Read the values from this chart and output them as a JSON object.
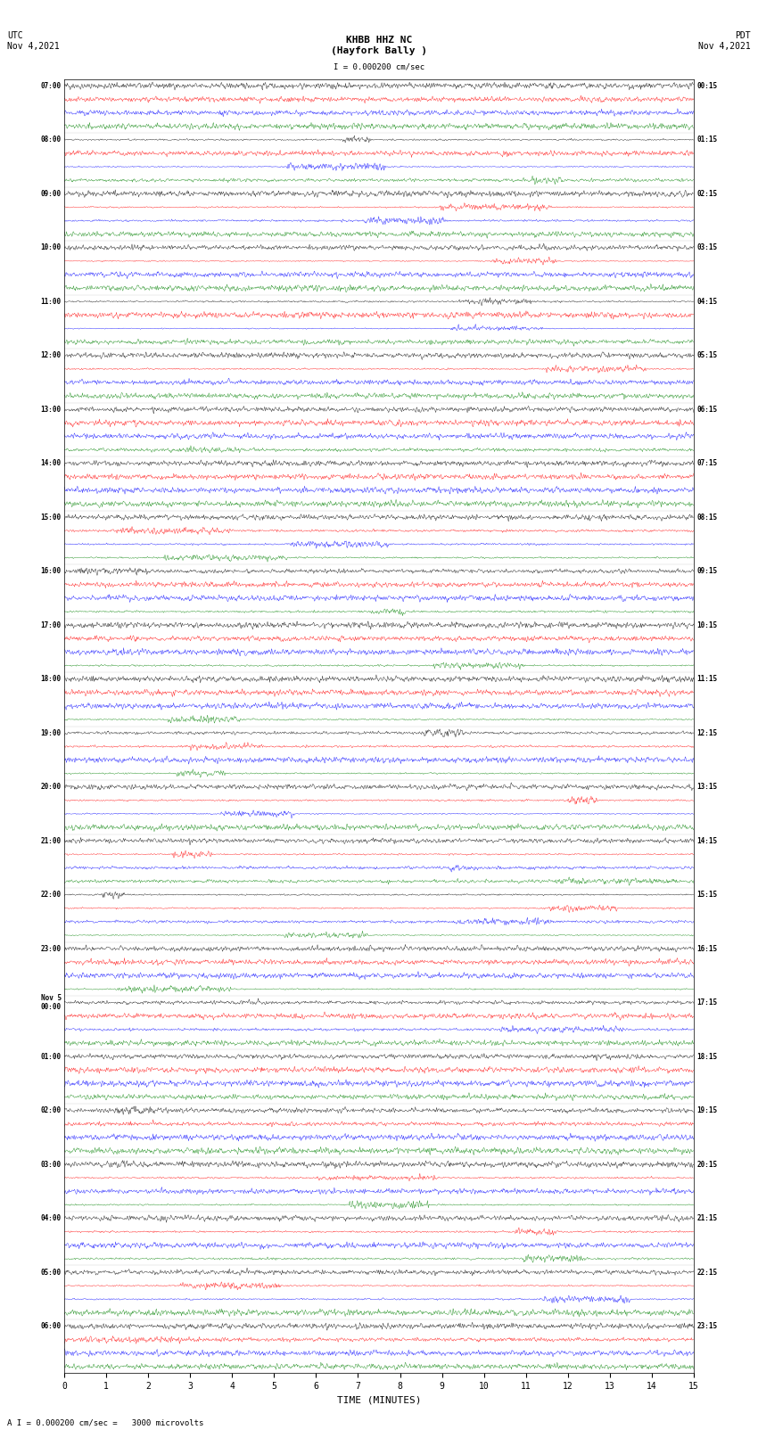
{
  "title_center": "KHBB HHZ NC\n(Hayfork Bally )",
  "title_left": "UTC\nNov 4,2021",
  "title_right": "PDT\nNov 4,2021",
  "scale_label": "I = 0.000200 cm/sec",
  "footer_label": "A I = 0.000200 cm/sec =   3000 microvolts",
  "xlabel": "TIME (MINUTES)",
  "xticks": [
    0,
    1,
    2,
    3,
    4,
    5,
    6,
    7,
    8,
    9,
    10,
    11,
    12,
    13,
    14,
    15
  ],
  "left_times": [
    "07:00",
    "",
    "",
    "",
    "08:00",
    "",
    "",
    "",
    "09:00",
    "",
    "",
    "",
    "10:00",
    "",
    "",
    "",
    "11:00",
    "",
    "",
    "",
    "12:00",
    "",
    "",
    "",
    "13:00",
    "",
    "",
    "",
    "14:00",
    "",
    "",
    "",
    "15:00",
    "",
    "",
    "",
    "16:00",
    "",
    "",
    "",
    "17:00",
    "",
    "",
    "",
    "18:00",
    "",
    "",
    "",
    "19:00",
    "",
    "",
    "",
    "20:00",
    "",
    "",
    "",
    "21:00",
    "",
    "",
    "",
    "22:00",
    "",
    "",
    "",
    "23:00",
    "",
    "",
    "",
    "Nov 5\n00:00",
    "",
    "",
    "",
    "01:00",
    "",
    "",
    "",
    "02:00",
    "",
    "",
    "",
    "03:00",
    "",
    "",
    "",
    "04:00",
    "",
    "",
    "",
    "05:00",
    "",
    "",
    "",
    "06:00",
    "",
    "",
    ""
  ],
  "right_times": [
    "00:15",
    "",
    "",
    "",
    "01:15",
    "",
    "",
    "",
    "02:15",
    "",
    "",
    "",
    "03:15",
    "",
    "",
    "",
    "04:15",
    "",
    "",
    "",
    "05:15",
    "",
    "",
    "",
    "06:15",
    "",
    "",
    "",
    "07:15",
    "",
    "",
    "",
    "08:15",
    "",
    "",
    "",
    "09:15",
    "",
    "",
    "",
    "10:15",
    "",
    "",
    "",
    "11:15",
    "",
    "",
    "",
    "12:15",
    "",
    "",
    "",
    "13:15",
    "",
    "",
    "",
    "14:15",
    "",
    "",
    "",
    "15:15",
    "",
    "",
    "",
    "16:15",
    "",
    "",
    "",
    "17:15",
    "",
    "",
    "",
    "18:15",
    "",
    "",
    "",
    "19:15",
    "",
    "",
    "",
    "20:15",
    "",
    "",
    "",
    "21:15",
    "",
    "",
    "",
    "22:15",
    "",
    "",
    "",
    "23:15",
    "",
    "",
    ""
  ],
  "colors": [
    "black",
    "red",
    "blue",
    "green"
  ],
  "bg_color": "#ffffff",
  "trace_bg": "#ffffff",
  "num_rows": 96,
  "traces_per_hour": 4,
  "minutes": 15,
  "noise_seed": 42
}
